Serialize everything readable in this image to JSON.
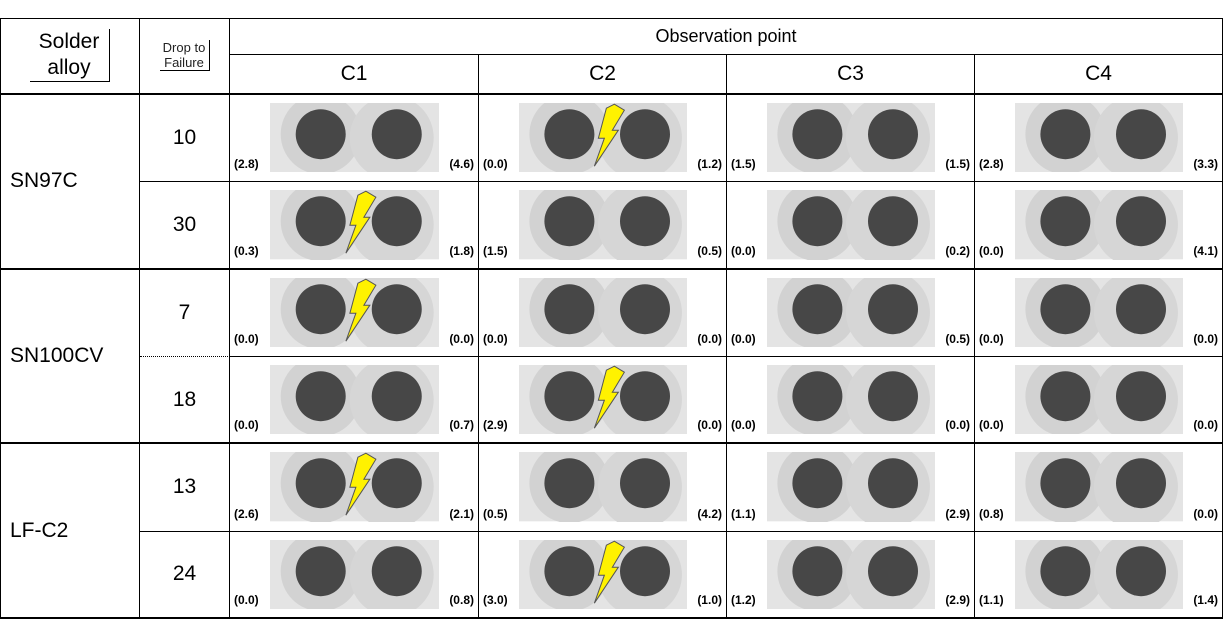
{
  "header": {
    "alloy": "Solder alloy",
    "drop": "Drop to Failure",
    "observation": "Observation point",
    "points": [
      "C1",
      "C2",
      "C3",
      "C4"
    ]
  },
  "rows": [
    {
      "alloy": "SN97C",
      "entries": [
        {
          "drop": "10",
          "cells": [
            {
              "left": "(2.8)",
              "right": "(4.6)",
              "crack": false
            },
            {
              "left": "(0.0)",
              "right": "(1.2)",
              "crack": true
            },
            {
              "left": "(1.5)",
              "right": "(1.5)",
              "crack": false
            },
            {
              "left": "(2.8)",
              "right": "(3.3)",
              "crack": false
            }
          ]
        },
        {
          "drop": "30",
          "cells": [
            {
              "left": "(0.3)",
              "right": "(1.8)",
              "crack": true
            },
            {
              "left": "(1.5)",
              "right": "(0.5)",
              "crack": false
            },
            {
              "left": "(0.0)",
              "right": "(0.2)",
              "crack": false
            },
            {
              "left": "(0.0)",
              "right": "(4.1)",
              "crack": false
            }
          ]
        }
      ]
    },
    {
      "alloy": "SN100CV",
      "entries": [
        {
          "drop": "7",
          "cells": [
            {
              "left": "(0.0)",
              "right": "(0.0)",
              "crack": true
            },
            {
              "left": "(0.0)",
              "right": "(0.0)",
              "crack": false
            },
            {
              "left": "(0.0)",
              "right": "(0.5)",
              "crack": false
            },
            {
              "left": "(0.0)",
              "right": "(0.0)",
              "crack": false
            }
          ]
        },
        {
          "drop": "18",
          "cells": [
            {
              "left": "(0.0)",
              "right": "(0.7)",
              "crack": false
            },
            {
              "left": "(2.9)",
              "right": "(0.0)",
              "crack": true
            },
            {
              "left": "(0.0)",
              "right": "(0.0)",
              "crack": false
            },
            {
              "left": "(0.0)",
              "right": "(0.0)",
              "crack": false
            }
          ]
        }
      ]
    },
    {
      "alloy": "LF-C2",
      "entries": [
        {
          "drop": "13",
          "cells": [
            {
              "left": "(2.6)",
              "right": "(2.1)",
              "crack": true
            },
            {
              "left": "(0.5)",
              "right": "(4.2)",
              "crack": false
            },
            {
              "left": "(1.1)",
              "right": "(2.9)",
              "crack": false
            },
            {
              "left": "(0.8)",
              "right": "(0.0)",
              "crack": false
            }
          ]
        },
        {
          "drop": "24",
          "cells": [
            {
              "left": "(0.0)",
              "right": "(0.8)",
              "crack": false
            },
            {
              "left": "(3.0)",
              "right": "(1.0)",
              "crack": true
            },
            {
              "left": "(1.2)",
              "right": "(2.9)",
              "crack": false
            },
            {
              "left": "(1.1)",
              "right": "(1.4)",
              "crack": false
            }
          ]
        }
      ]
    }
  ]
}
